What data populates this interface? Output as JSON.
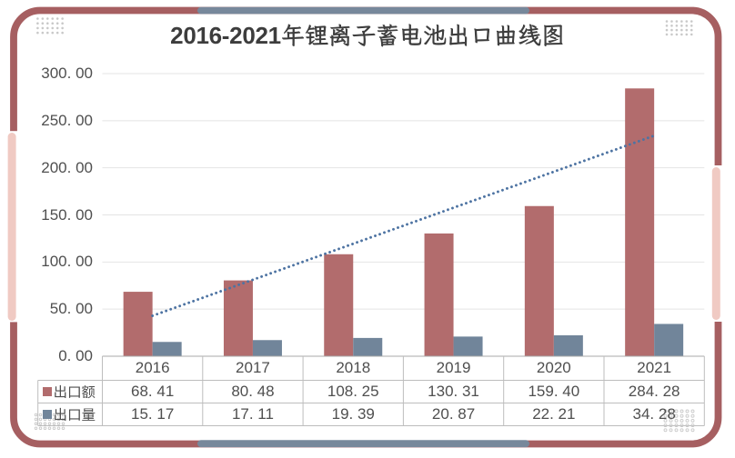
{
  "title": {
    "text": "2016-2021年锂离子蓄电池出口曲线图",
    "prefix": "2016-2021",
    "suffix": "年锂离子蓄电池出口曲线图"
  },
  "chart_data": {
    "type": "bar",
    "title": "2016-2021年锂离子蓄电池出口曲线图",
    "categories": [
      "2016",
      "2017",
      "2018",
      "2019",
      "2020",
      "2021"
    ],
    "series": [
      {
        "name": "出口额",
        "color": "#b26c6d",
        "values": [
          68.41,
          80.48,
          108.25,
          130.31,
          159.4,
          284.28
        ]
      },
      {
        "name": "出口量",
        "color": "#71859a",
        "values": [
          15.17,
          17.11,
          19.39,
          20.87,
          22.21,
          34.28
        ]
      }
    ],
    "trendline": {
      "on_series": "出口额",
      "fit": "linear",
      "style": "dotted",
      "color": "#4d73a2"
    },
    "xlabel": "",
    "ylabel": "",
    "y_axis": {
      "min": 0,
      "max": 300,
      "step": 50,
      "tick_labels": [
        "0. 00",
        "50. 00",
        "100. 00",
        "150. 00",
        "200. 00",
        "250. 00",
        "300. 00"
      ]
    },
    "grid": true,
    "legend_position": "data-table-left"
  },
  "data_table": {
    "year_row": [
      "2016",
      "2017",
      "2018",
      "2019",
      "2020",
      "2021"
    ],
    "rows": [
      {
        "legend": "出口额",
        "swatch_color": "#b26c6d",
        "cells": [
          "68. 41",
          "80. 48",
          "108. 25",
          "130. 31",
          "159. 40",
          "284. 28"
        ]
      },
      {
        "legend": "出口量",
        "swatch_color": "#71859a",
        "cells": [
          "15. 17",
          "17. 11",
          "19. 39",
          "20. 87",
          "22. 21",
          "34. 28"
        ]
      }
    ]
  },
  "frame": {
    "border_color": "#a65f61",
    "pink_accent": "#f0cac3",
    "slate_accent": "#77889b",
    "dot_color": "#c9c9c9"
  },
  "colors": {
    "background": "#ffffff",
    "title_text": "#3d3d3d",
    "axis_text": "#4f4f4f",
    "gridline": "#e4e4e4",
    "axis_line": "#a8a8a8",
    "table_border": "#bdbdbd"
  }
}
